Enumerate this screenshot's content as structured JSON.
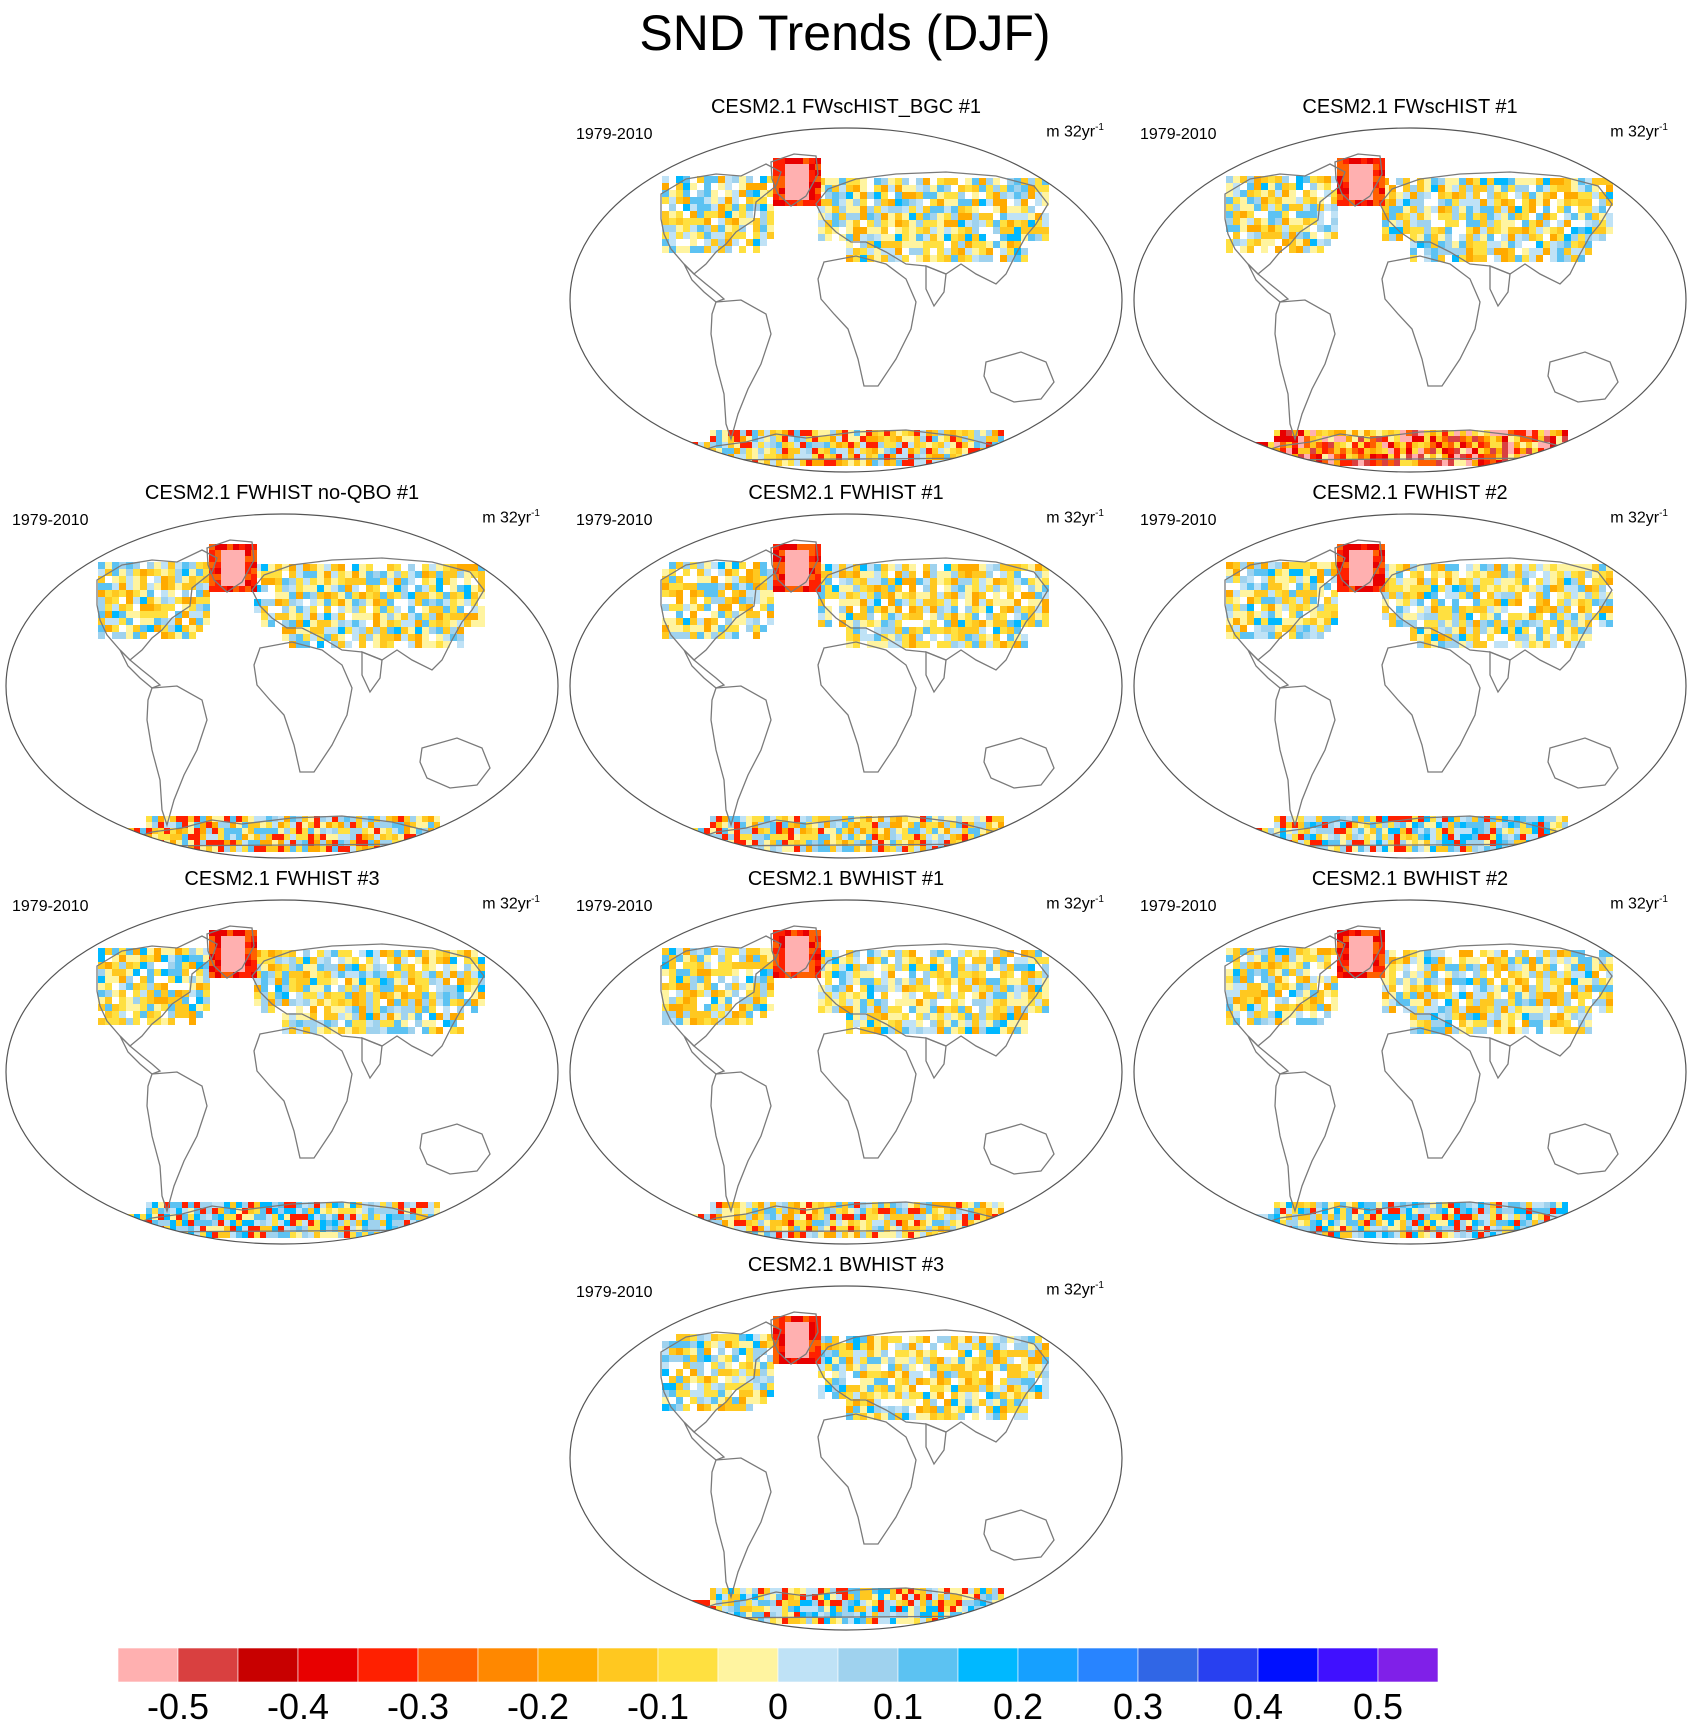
{
  "title": "SND Trends (DJF)",
  "panels": [
    {
      "title": "CESM2.1 FWscHIST_BGC #1",
      "period": "1979-2010",
      "units": "m 32yr",
      "units_exp": "-1",
      "antarctic_mode": "mixed"
    },
    {
      "title": "CESM2.1 FWscHIST #1",
      "period": "1979-2010",
      "units": "m 32yr",
      "units_exp": "-1",
      "antarctic_mode": "red"
    },
    {
      "title": "CESM2.1 FWHIST no-QBO #1",
      "period": "1979-2010",
      "units": "m 32yr",
      "units_exp": "-1",
      "antarctic_mode": "mixed"
    },
    {
      "title": "CESM2.1 FWHIST #1",
      "period": "1979-2010",
      "units": "m 32yr",
      "units_exp": "-1",
      "antarctic_mode": "mixed"
    },
    {
      "title": "CESM2.1 FWHIST #2",
      "period": "1979-2010",
      "units": "m 32yr",
      "units_exp": "-1",
      "antarctic_mode": "blue"
    },
    {
      "title": "CESM2.1 FWHIST #3",
      "period": "1979-2010",
      "units": "m 32yr",
      "units_exp": "-1",
      "antarctic_mode": "blue"
    },
    {
      "title": "CESM2.1 BWHIST #1",
      "period": "1979-2010",
      "units": "m 32yr",
      "units_exp": "-1",
      "antarctic_mode": "mixed"
    },
    {
      "title": "CESM2.1 BWHIST #2",
      "period": "1979-2010",
      "units": "m 32yr",
      "units_exp": "-1",
      "antarctic_mode": "blue"
    },
    {
      "title": "CESM2.1 BWHIST #3",
      "period": "1979-2010",
      "units": "m 32yr",
      "units_exp": "-1",
      "antarctic_mode": "blue"
    }
  ],
  "colorbar": {
    "colors": [
      "#ffb0b0",
      "#d94040",
      "#c80000",
      "#e80000",
      "#ff2000",
      "#ff6000",
      "#ff8800",
      "#ffaa00",
      "#ffc820",
      "#ffe040",
      "#fff4a0",
      "#bfe2f6",
      "#9fd2ee",
      "#5cc2f2",
      "#00b8ff",
      "#16a0ff",
      "#2884ff",
      "#3066e6",
      "#2840f0",
      "#0010ff",
      "#4010ff",
      "#8020e8"
    ],
    "labels": [
      "-0.5",
      "-0.4",
      "-0.3",
      "-0.2",
      "-0.1",
      "0",
      "0.1",
      "0.2",
      "0.3",
      "0.4",
      "0.5"
    ]
  }
}
